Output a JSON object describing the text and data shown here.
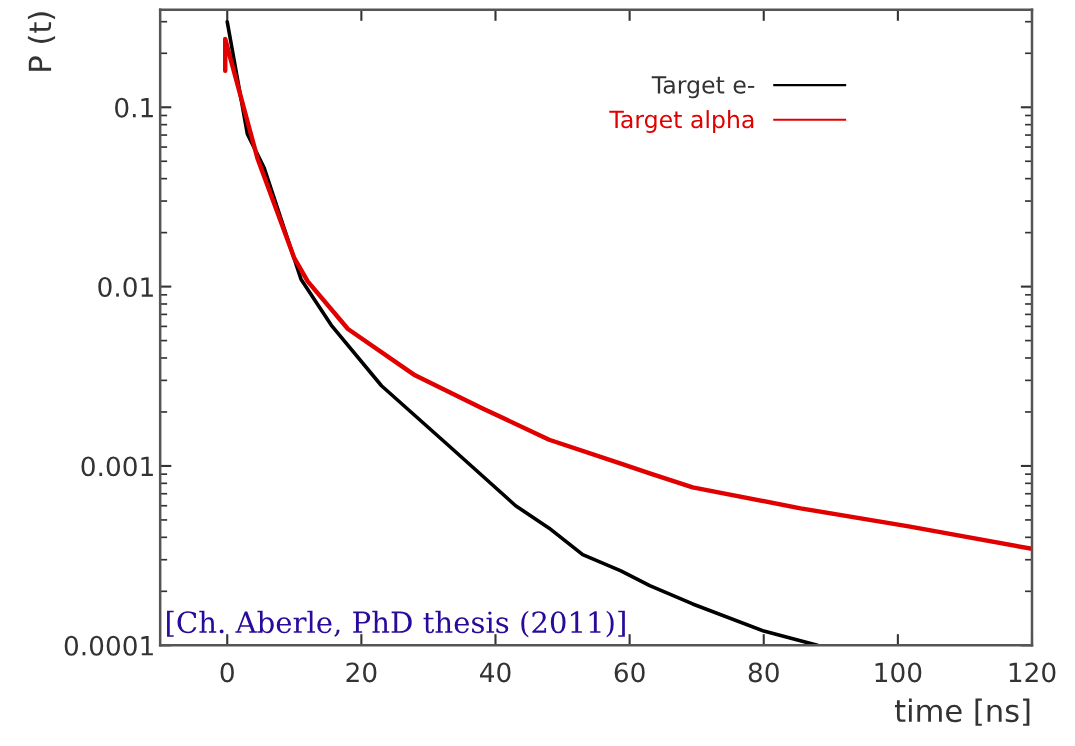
{
  "chart_data": {
    "type": "line",
    "xlabel": "time [ns]",
    "ylabel": "P (t)",
    "xlim": [
      -10,
      120
    ],
    "xticks": [
      0,
      20,
      40,
      60,
      80,
      100,
      120
    ],
    "ylim": [
      0.0001,
      0.35
    ],
    "yticks": [
      0.0001,
      0.001,
      0.01,
      0.1
    ],
    "log": "y",
    "grid": false,
    "legend": "top right",
    "annotations": [
      "[Ch. Aberle, PhD thesis (2011)]"
    ],
    "series": [
      {
        "name": "Target e-",
        "color": "#000000",
        "x": [
          0,
          3,
          5.5,
          11,
          15.5,
          23,
          33,
          43,
          48,
          53,
          58.7,
          63,
          69.4,
          80,
          88
        ],
        "values": [
          0.3,
          0.071,
          0.046,
          0.011,
          0.0061,
          0.0028,
          0.0013,
          0.0006,
          0.00045,
          0.00032,
          0.00026,
          0.000215,
          0.00017,
          0.00012,
          0.0001
        ]
      },
      {
        "name": "Target alpha",
        "color": "#e00000",
        "x": [
          -0.3,
          -0.3,
          4.5,
          10,
          12,
          18,
          28,
          38,
          48,
          58.7,
          63,
          69.4,
          85.5,
          101.6,
          120
        ],
        "values": [
          0.16,
          0.24,
          0.052,
          0.0144,
          0.0107,
          0.0058,
          0.0032,
          0.0021,
          0.0014,
          0.00103,
          0.00091,
          0.00076,
          0.00058,
          0.00046,
          0.000345
        ]
      }
    ]
  }
}
